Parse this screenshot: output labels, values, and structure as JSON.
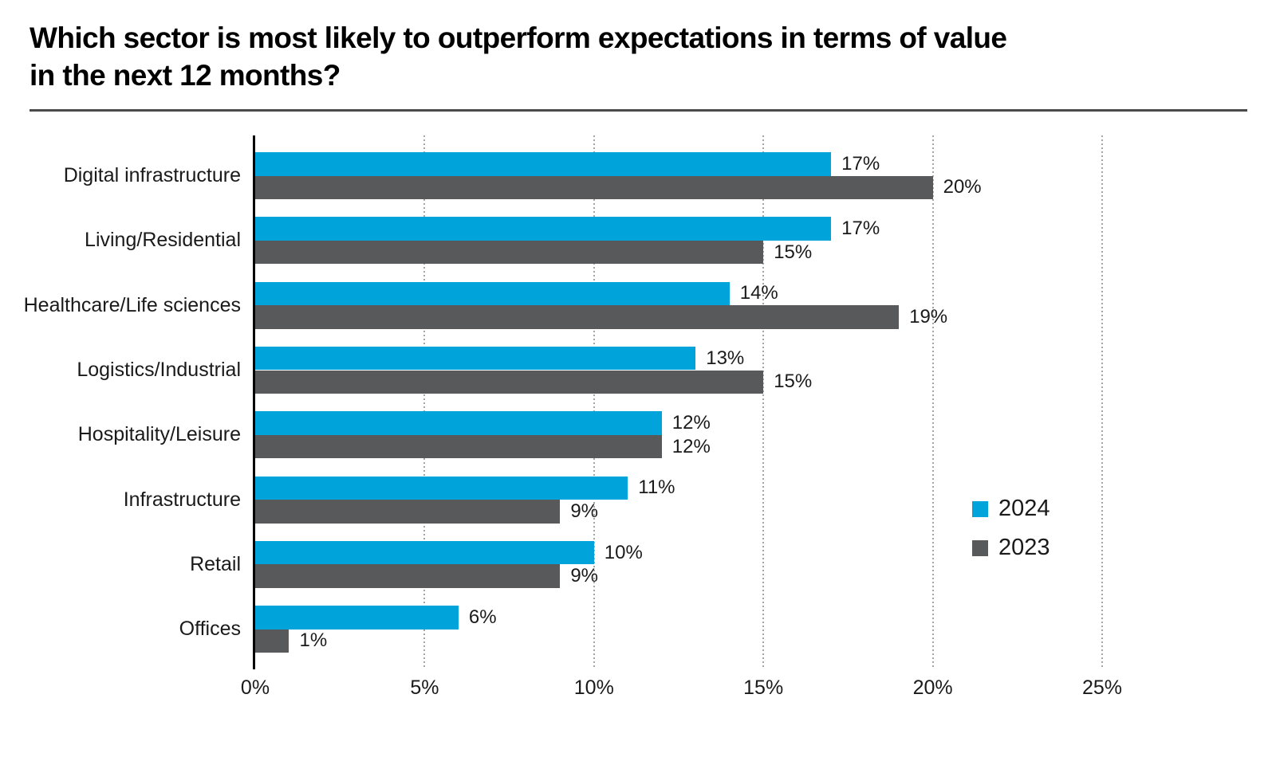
{
  "header": {
    "title_line1": "Which sector is most likely to outperform expectations in terms of value",
    "title_line2": "in the next 12 months?"
  },
  "chart_data": {
    "type": "bar",
    "orientation": "horizontal",
    "title": "Which sector is most likely to outperform expectations in terms of value in the next 12 months?",
    "categories": [
      "Digital infrastructure",
      "Living/Residential",
      "Healthcare/Life sciences",
      "Logistics/Industrial",
      "Hospitality/Leisure",
      "Infrastructure",
      "Retail",
      "Offices"
    ],
    "series": [
      {
        "name": "2024",
        "color": "#00A3DA",
        "values": [
          17,
          17,
          14,
          13,
          12,
          11,
          10,
          6
        ]
      },
      {
        "name": "2023",
        "color": "#58595B",
        "values": [
          20,
          15,
          19,
          15,
          12,
          9,
          9,
          1
        ]
      }
    ],
    "value_label_format": "{v}%",
    "xlim": [
      0,
      25
    ],
    "x_ticks": [
      0,
      5,
      10,
      15,
      20,
      25
    ],
    "x_tick_labels": [
      "0%",
      "5%",
      "10%",
      "15%",
      "20%",
      "25%"
    ],
    "grid": "vertical-dotted",
    "legend_position": "right-middle"
  },
  "colors": {
    "bar_2024": "#00A3DA",
    "bar_2023": "#58595B",
    "gridline": "#A5A5A5",
    "axis_line": "#000000",
    "title_rule": "#4A4A4A",
    "text": "#1A1A1A"
  }
}
